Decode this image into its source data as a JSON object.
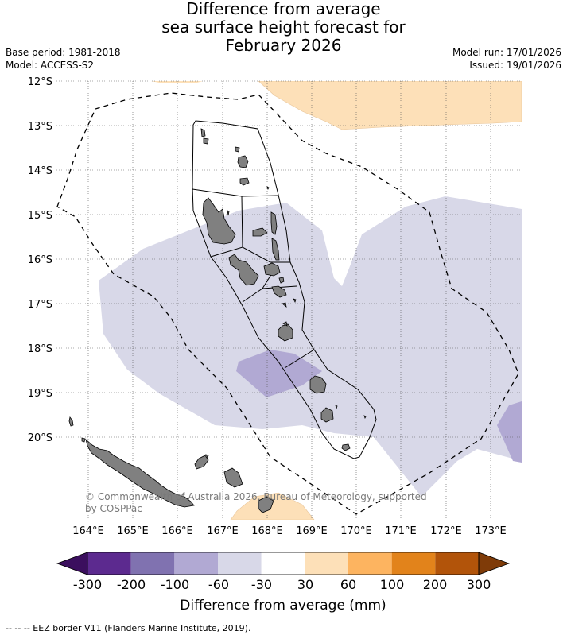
{
  "title": {
    "line1": "Difference from average",
    "line2": "sea surface height forecast for",
    "line3": "February 2026"
  },
  "meta_left": {
    "base_period": "Base period: 1981-2018",
    "model": "Model: ACCESS-S2"
  },
  "meta_right": {
    "model_run": "Model run: 17/01/2026",
    "issued": "Issued: 19/01/2026"
  },
  "map": {
    "lat_labels": [
      "12°S",
      "13°S",
      "14°S",
      "15°S",
      "16°S",
      "17°S",
      "18°S",
      "19°S",
      "20°S"
    ],
    "lon_labels": [
      "164°E",
      "165°E",
      "166°E",
      "167°E",
      "168°E",
      "169°E",
      "170°E",
      "171°E",
      "172°E",
      "173°E"
    ],
    "credit_line1": "© Commonwealth of Australia 2026, Bureau of Meteorology, supported",
    "credit_line2": "by COSPPac",
    "colors": {
      "land": "#808080",
      "anomaly_neg_light": "#d8d8e8",
      "anomaly_neg_mid": "#b1a9d3",
      "anomaly_pos_light": "#fde0b8"
    }
  },
  "colorbar": {
    "tick_labels": [
      "-300",
      "-200",
      "-100",
      "-60",
      "-30",
      "30",
      "60",
      "100",
      "200",
      "300"
    ],
    "colors": [
      "#3b0f5e",
      "#5c2a8f",
      "#8072b0",
      "#b1a9d3",
      "#d8d8e8",
      "#ffffff",
      "#fde0b8",
      "#fdb460",
      "#e2831b",
      "#b2540a",
      "#7f3b08"
    ],
    "title": "Difference from average (mm)"
  },
  "footnote": "-- -- -- EEZ border V11 (Flanders Marine Institute, 2019)."
}
